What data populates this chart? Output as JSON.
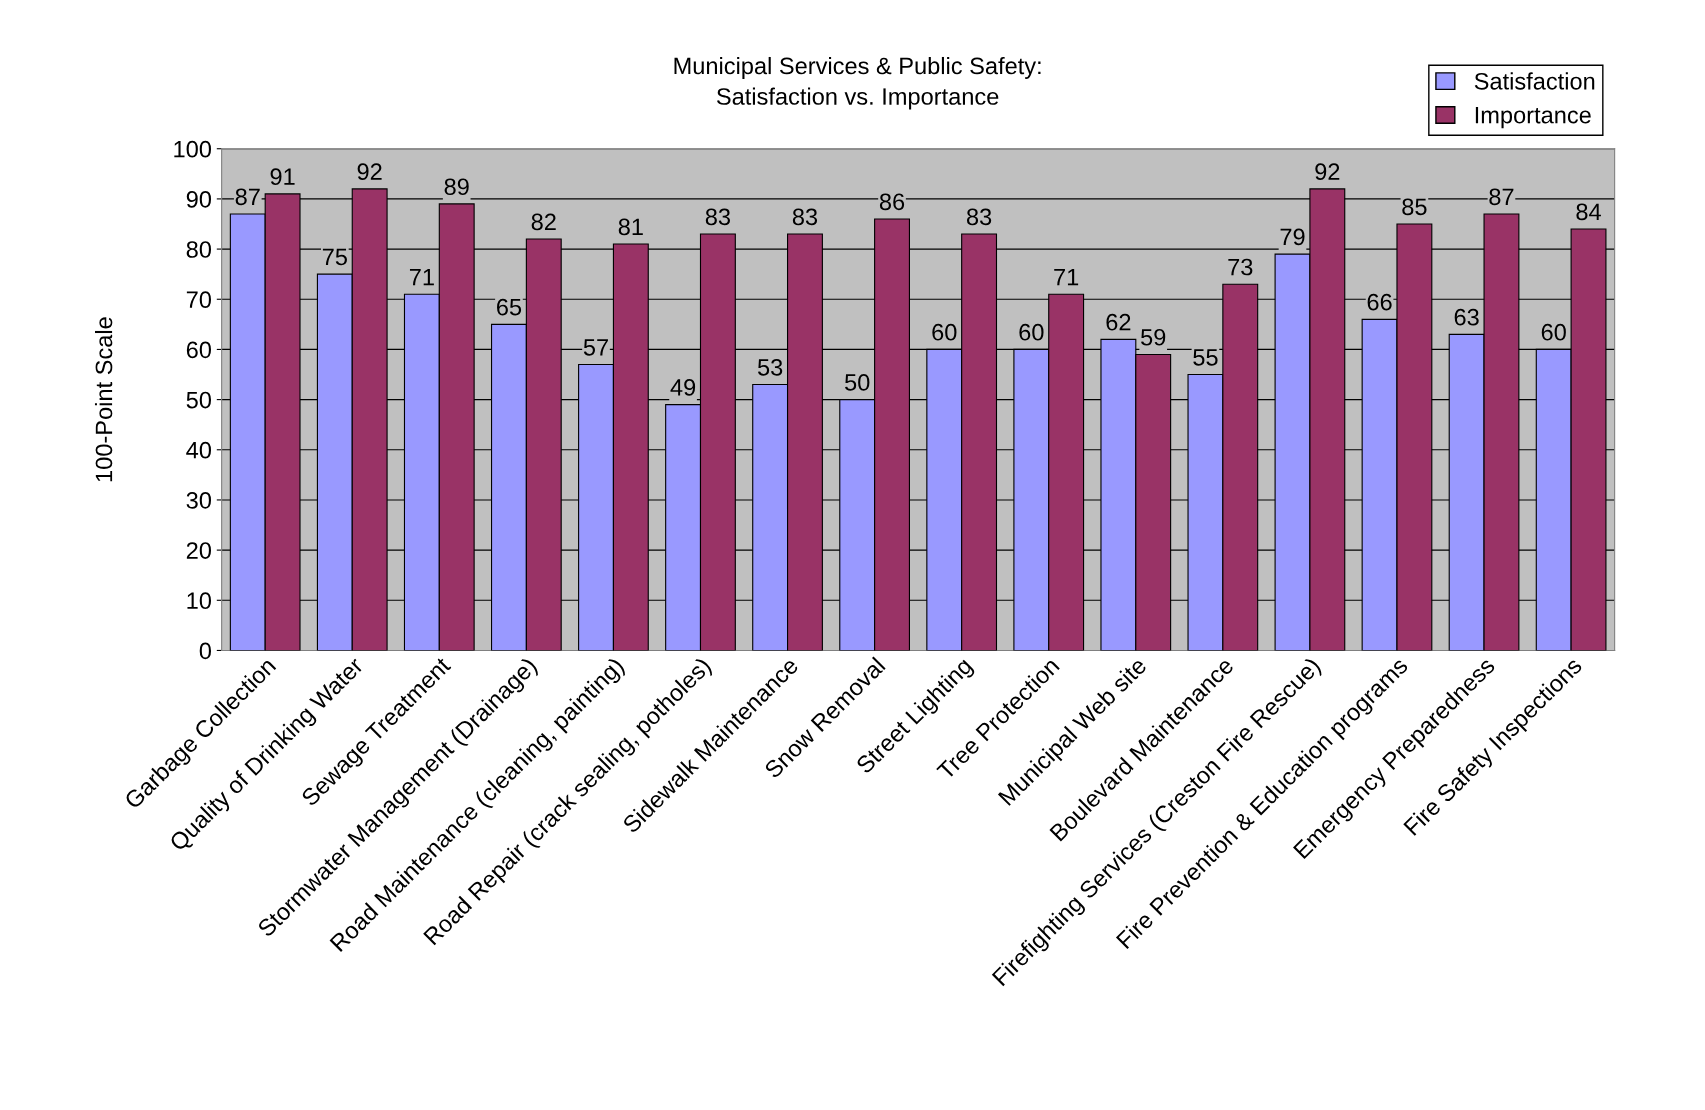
{
  "chart_data": {
    "type": "bar",
    "title": "Municipal Services & Public Safety:\nSatisfaction vs. Importance",
    "ylabel": "100-Point Scale",
    "categories": [
      "Garbage Collection",
      "Quality of Drinking Water",
      "Sewage Treatment",
      "Stormwater Management (Drainage)",
      "Road Maintenance (cleaning, painting)",
      "Road Repair (crack sealing, potholes)",
      "Sidewalk Maintenance",
      "Snow Removal",
      "Street Lighting",
      "Tree Protection",
      "Municipal Web site",
      "Boulevard Maintenance",
      "Firefighting Services (Creston Fire Rescue)",
      "Fire Prevention & Education programs",
      "Emergency Preparedness",
      "Fire Safety Inspections"
    ],
    "series": [
      {
        "name": "Satisfaction",
        "color": "#9999ff",
        "values": [
          87,
          75,
          71,
          65,
          57,
          49,
          53,
          50,
          60,
          60,
          62,
          55,
          79,
          66,
          63,
          60
        ]
      },
      {
        "name": "Importance",
        "color": "#993366",
        "values": [
          91,
          92,
          89,
          82,
          81,
          83,
          83,
          86,
          83,
          71,
          59,
          73,
          92,
          85,
          87,
          84
        ]
      }
    ],
    "ylim": [
      0,
      100
    ],
    "yticks": [
      0,
      10,
      20,
      30,
      40,
      50,
      60,
      70,
      80,
      90,
      100
    ],
    "grid": "y",
    "legend": "top right",
    "data_labels": true
  }
}
